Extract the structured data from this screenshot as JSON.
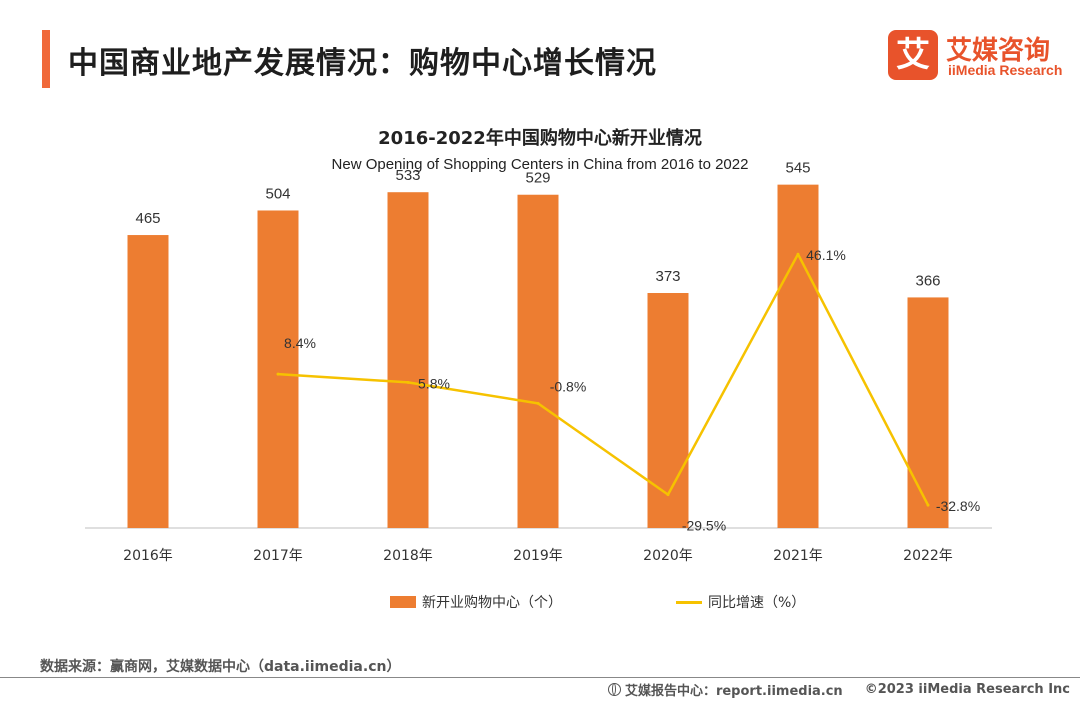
{
  "header": {
    "title": "中国商业地产发展情况：购物中心增长情况"
  },
  "logo": {
    "mark": "艾",
    "name_cn": "艾媒咨询",
    "name_en": "iiMedia Research"
  },
  "chart_data": {
    "type": "bar",
    "title": "2016-2022年中国购物中心新开业情况",
    "subtitle": "New Opening of Shopping Centers in China from 2016 to 2022",
    "categories": [
      "2016年",
      "2017年",
      "2018年",
      "2019年",
      "2020年",
      "2021年",
      "2022年"
    ],
    "series": [
      {
        "name": "新开业购物中心（个）",
        "type": "bar",
        "axis": "left",
        "values": [
          465,
          504,
          533,
          529,
          373,
          545,
          366
        ],
        "labels": [
          "465",
          "504",
          "533",
          "529",
          "373",
          "545",
          "366"
        ],
        "color": "#ed7d31"
      },
      {
        "name": "同比增速（%）",
        "type": "line",
        "axis": "right",
        "values": [
          null,
          8.4,
          5.8,
          -0.8,
          -29.5,
          46.1,
          -32.8
        ],
        "labels": [
          "",
          "8.4%",
          "5.8%",
          "-0.8%",
          "-29.5%",
          "46.1%",
          "-32.8%"
        ],
        "color": "#f6c200"
      }
    ],
    "ylim_left": [
      0,
      600
    ],
    "ylim_right": [
      -40,
      60
    ],
    "grid": false,
    "legend_position": "bottom"
  },
  "footer": {
    "source": "数据来源：赢商网，艾媒数据中心（data.iimedia.cn）",
    "report_center": "艾媒报告中心：report.iimedia.cn",
    "copyright": "©2023  iiMedia Research  Inc",
    "globe_icon": "globe-icon"
  }
}
